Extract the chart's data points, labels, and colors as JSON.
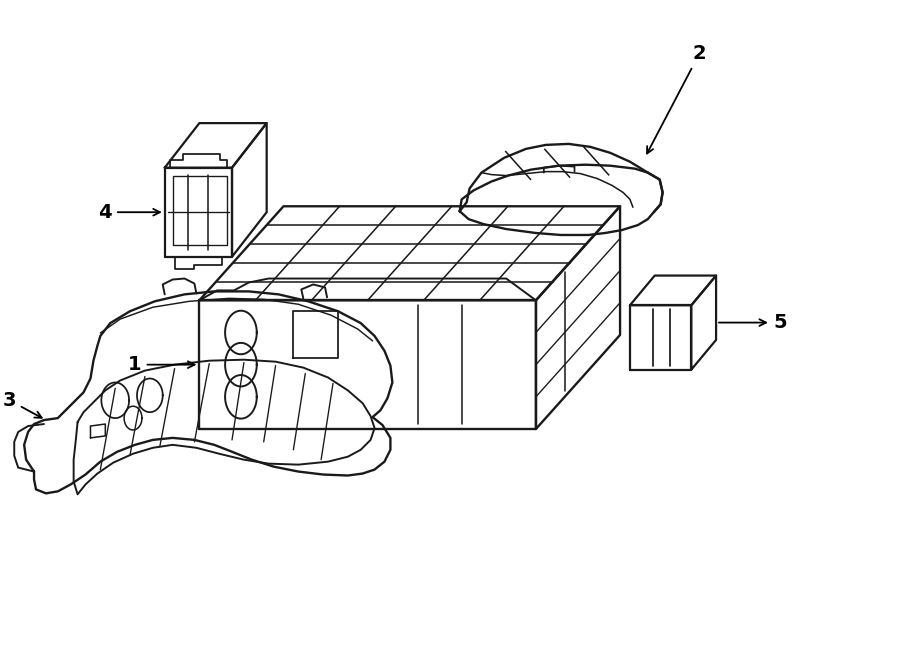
{
  "background_color": "#ffffff",
  "line_color": "#1a1a1a",
  "line_width": 1.4,
  "fig_width": 9.0,
  "fig_height": 6.61,
  "dpi": 100
}
